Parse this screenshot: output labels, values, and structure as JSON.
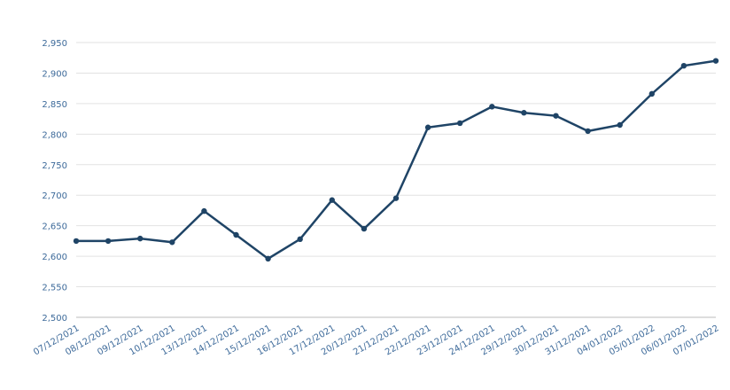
{
  "chart_data": {
    "type": "line",
    "categories": [
      "07/12/2021",
      "08/12/2021",
      "09/12/2021",
      "10/12/2021",
      "13/12/2021",
      "14/12/2021",
      "15/12/2021",
      "16/12/2021",
      "17/12/2021",
      "20/12/2021",
      "21/12/2021",
      "22/12/2021",
      "23/12/2021",
      "24/12/2021",
      "29/12/2021",
      "30/12/2021",
      "31/12/2021",
      "04/01/2022",
      "05/01/2022",
      "06/01/2022",
      "07/01/2022"
    ],
    "values": [
      2625,
      2625,
      2629,
      2623,
      2674,
      2635,
      2596,
      2628,
      2692,
      2645,
      2695,
      2811,
      2818,
      2845,
      2835,
      2830,
      2805,
      2815,
      2866,
      2912,
      2920
    ],
    "color": "#1f4466",
    "ylim": [
      2500,
      2950
    ],
    "yticks": [
      {
        "value": 2500,
        "label": "2,500"
      },
      {
        "value": 2550,
        "label": "2,550"
      },
      {
        "value": 2600,
        "label": "2,600"
      },
      {
        "value": 2650,
        "label": "2,650"
      },
      {
        "value": 2700,
        "label": "2,700"
      },
      {
        "value": 2750,
        "label": "2,750"
      },
      {
        "value": 2800,
        "label": "2,800"
      },
      {
        "value": 2850,
        "label": "2,850"
      },
      {
        "value": 2900,
        "label": "2,900"
      },
      {
        "value": 2950,
        "label": "2,950"
      }
    ],
    "grid": true
  }
}
